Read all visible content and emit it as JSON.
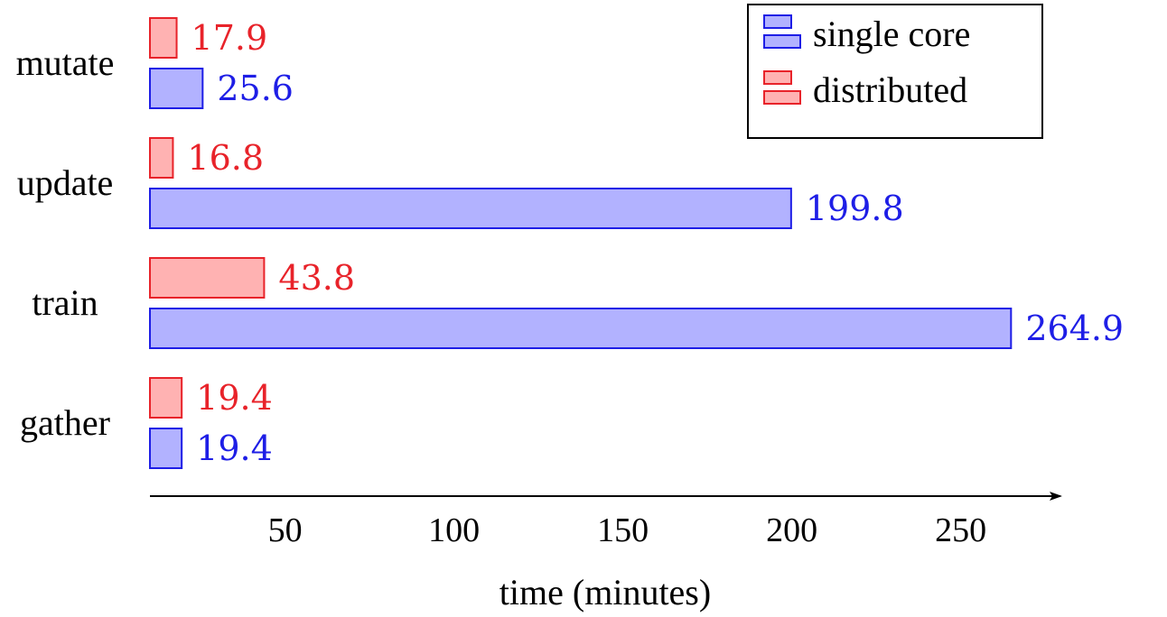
{
  "chart_data": {
    "type": "bar",
    "orientation": "horizontal",
    "categories": [
      "mutate",
      "update",
      "train",
      "gather"
    ],
    "series": [
      {
        "name": "distributed",
        "values": [
          17.9,
          16.8,
          43.8,
          19.4
        ],
        "labels": [
          "17.9",
          "16.8",
          "43.8",
          "19.4"
        ],
        "color": "#e8232a",
        "fill": "#ffb2b2"
      },
      {
        "name": "single core",
        "values": [
          25.6,
          199.8,
          264.9,
          19.4
        ],
        "labels": [
          "25.6",
          "199.8",
          "264.9",
          "19.4"
        ],
        "color": "#1e1ee6",
        "fill": "#b2b2ff"
      }
    ],
    "xticks": [
      50,
      100,
      150,
      200,
      250
    ],
    "xtick_labels": [
      "50",
      "100",
      "150",
      "200",
      "250"
    ],
    "xlabel": "time (minutes)",
    "ylabel": "",
    "title": "",
    "xlim": [
      10,
      270
    ],
    "grid": false,
    "legend": {
      "placement": "top-right",
      "order": [
        "single core",
        "distributed"
      ]
    },
    "colors": {
      "axis": "#000000",
      "legend_border": "#000000"
    }
  }
}
